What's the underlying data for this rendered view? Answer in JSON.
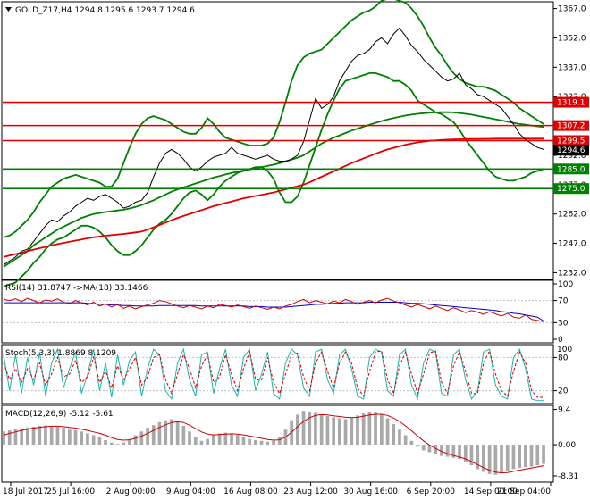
{
  "chart_data": {
    "type": "line",
    "main": {
      "title": "GOLD_Z17,H4  1294.8 1295.6 1293.7 1294.6",
      "ylim": [
        1229,
        1370
      ],
      "y_ticks": [
        1232.0,
        1247.0,
        1262.0,
        1277.0,
        1292.0,
        1307.0,
        1322.0,
        1337.0,
        1352.0,
        1367.0
      ],
      "hlines": [
        {
          "value": 1319.1,
          "label": "1319.1",
          "color": "#e00000"
        },
        {
          "value": 1307.2,
          "label": "1307.2",
          "color": "#e00000"
        },
        {
          "value": 1299.5,
          "label": "1299.5",
          "color": "#e00000"
        },
        {
          "value": 1285.0,
          "label": "1285.0",
          "color": "#008000"
        },
        {
          "value": 1275.0,
          "label": "1275.0",
          "color": "#008000"
        }
      ],
      "current_price": {
        "value": 1294.6,
        "label": "1294.6"
      },
      "price": [
        1236,
        1238,
        1240,
        1243,
        1244,
        1248,
        1252,
        1256,
        1259,
        1258,
        1261,
        1263,
        1266,
        1268,
        1270,
        1269,
        1271,
        1272,
        1270,
        1268,
        1265,
        1266,
        1268,
        1269,
        1273,
        1281,
        1288,
        1293,
        1295,
        1293,
        1290,
        1286,
        1284,
        1286,
        1289,
        1291,
        1292,
        1293,
        1296,
        1293,
        1292,
        1291,
        1290,
        1291,
        1292,
        1290,
        1289,
        1289,
        1290,
        1292,
        1299,
        1310,
        1321,
        1316,
        1318,
        1322,
        1330,
        1335,
        1340,
        1343,
        1344,
        1346,
        1350,
        1352,
        1349,
        1354,
        1357,
        1353,
        1348,
        1345,
        1341,
        1338,
        1335,
        1332,
        1330,
        1331,
        1334,
        1328,
        1326,
        1323,
        1322,
        1320,
        1318,
        1316,
        1312,
        1308,
        1303,
        1300,
        1298,
        1296,
        1295
      ],
      "bb_upper": [
        1250,
        1251,
        1253,
        1256,
        1259,
        1263,
        1268,
        1272,
        1276,
        1278,
        1280,
        1281,
        1282,
        1281,
        1280,
        1279,
        1278,
        1276,
        1276,
        1280,
        1288,
        1296,
        1303,
        1308,
        1311,
        1312,
        1311,
        1310,
        1308,
        1306,
        1304,
        1303,
        1303,
        1306,
        1311,
        1308,
        1304,
        1301,
        1300,
        1299,
        1298,
        1297,
        1297,
        1297,
        1298,
        1301,
        1309,
        1319,
        1330,
        1338,
        1342,
        1344,
        1345,
        1346,
        1349,
        1352,
        1355,
        1358,
        1361,
        1363,
        1365,
        1366,
        1368,
        1371,
        1372,
        1372,
        1371,
        1370,
        1367,
        1363,
        1358,
        1352,
        1347,
        1343,
        1338,
        1334,
        1331,
        1329,
        1328,
        1327,
        1327,
        1326,
        1325,
        1323,
        1321,
        1319,
        1316,
        1314,
        1312,
        1310,
        1308
      ],
      "bb_lower": [
        1225,
        1226,
        1227,
        1230,
        1233,
        1237,
        1240,
        1244,
        1247,
        1249,
        1250,
        1252,
        1254,
        1256,
        1256,
        1255,
        1253,
        1250,
        1246,
        1243,
        1241,
        1241,
        1243,
        1246,
        1250,
        1254,
        1257,
        1259,
        1262,
        1266,
        1270,
        1273,
        1274,
        1272,
        1269,
        1272,
        1276,
        1279,
        1281,
        1283,
        1284,
        1285,
        1286,
        1286,
        1284,
        1280,
        1273,
        1268,
        1268,
        1271,
        1278,
        1287,
        1296,
        1305,
        1313,
        1320,
        1326,
        1330,
        1331,
        1332,
        1333,
        1334,
        1334,
        1333,
        1332,
        1330,
        1330,
        1328,
        1325,
        1320,
        1318,
        1316,
        1314,
        1313,
        1311,
        1309,
        1305,
        1300,
        1296,
        1292,
        1288,
        1284,
        1281,
        1280,
        1279,
        1279,
        1280,
        1281,
        1283,
        1284,
        1285
      ],
      "ma200": [
        1240,
        1240.8,
        1241.5,
        1242.2,
        1243,
        1243.8,
        1244.5,
        1245.2,
        1246,
        1246.6,
        1247.2,
        1247.8,
        1248.4,
        1249,
        1249.6,
        1250.1,
        1250.5,
        1250.9,
        1251.2,
        1251.5,
        1251.8,
        1252.2,
        1252.6,
        1253,
        1254,
        1255.2,
        1256.4,
        1257.6,
        1258.8,
        1260,
        1261,
        1262,
        1263,
        1264,
        1265,
        1266,
        1266.8,
        1267.6,
        1268.4,
        1269.2,
        1270,
        1270.6,
        1271.2,
        1271.8,
        1272.4,
        1273,
        1273.8,
        1274.6,
        1275.4,
        1276.2,
        1277,
        1278.2,
        1279.6,
        1281,
        1282.4,
        1283.8,
        1285.2,
        1286.6,
        1288,
        1289.2,
        1290.4,
        1291.6,
        1292.8,
        1294,
        1295,
        1295.8,
        1296.6,
        1297.4,
        1298,
        1298.6,
        1299,
        1299.4,
        1299.6,
        1299.8,
        1300,
        1300.1,
        1300.2,
        1300.3,
        1300.3,
        1300.3,
        1300.4,
        1300.4,
        1300.5,
        1300.5,
        1300.5,
        1300.5,
        1300.5,
        1300.5,
        1300.5,
        1300.5,
        1300.5
      ],
      "ma100": [
        1235,
        1237,
        1239,
        1241,
        1243,
        1246,
        1248,
        1250,
        1252,
        1254,
        1255.5,
        1257,
        1258.5,
        1260,
        1261,
        1262,
        1262.5,
        1263,
        1263.4,
        1263.8,
        1264.2,
        1264.8,
        1265.6,
        1266.6,
        1267.8,
        1269,
        1270.5,
        1272,
        1273.4,
        1274.6,
        1275.6,
        1276.6,
        1277.6,
        1278.6,
        1279.6,
        1280.6,
        1281.4,
        1282.2,
        1283,
        1283.6,
        1284.2,
        1284.8,
        1285.4,
        1286,
        1286.6,
        1287.2,
        1288,
        1288.8,
        1289.8,
        1290.8,
        1292,
        1294,
        1296,
        1298,
        1299.5,
        1301,
        1302.2,
        1303.4,
        1304.6,
        1305.6,
        1306.6,
        1307.6,
        1308.6,
        1309.5,
        1310.3,
        1311,
        1311.7,
        1312.3,
        1312.8,
        1313.2,
        1313.5,
        1313.8,
        1313.9,
        1314,
        1314,
        1313.9,
        1313.6,
        1313.2,
        1312.8,
        1312.2,
        1311.6,
        1311,
        1310.4,
        1309.8,
        1309.2,
        1308.6,
        1308,
        1307.6,
        1307.2,
        1306.8,
        1306.5
      ]
    },
    "rsi": {
      "title": "RSI(14) 31.8747  ->MA(18) 33.1466",
      "ylim": [
        0,
        100
      ],
      "y_ticks": [
        0,
        30,
        70,
        100
      ],
      "rsi": [
        72,
        70,
        73,
        68,
        74,
        70,
        66,
        71,
        69,
        73,
        67,
        64,
        70,
        66,
        62,
        67,
        60,
        64,
        58,
        63,
        56,
        60,
        55,
        59,
        62,
        65,
        70,
        68,
        64,
        60,
        57,
        61,
        58,
        55,
        60,
        57,
        63,
        61,
        58,
        62,
        59,
        56,
        60,
        57,
        54,
        58,
        55,
        60,
        63,
        68,
        72,
        66,
        70,
        67,
        64,
        69,
        66,
        72,
        68,
        63,
        67,
        70,
        66,
        71,
        74,
        69,
        66,
        62,
        58,
        63,
        59,
        55,
        60,
        56,
        52,
        57,
        53,
        48,
        52,
        49,
        45,
        50,
        46,
        42,
        47,
        40,
        38,
        44,
        36,
        34,
        31.9
      ],
      "ma": [
        66,
        66,
        66,
        66,
        66,
        66,
        66,
        66,
        66,
        66,
        66,
        66,
        66,
        66,
        65,
        64,
        63,
        63,
        62,
        62,
        61,
        61,
        60,
        60,
        60,
        60,
        61,
        61,
        61,
        61,
        61,
        61,
        61,
        60,
        60,
        60,
        60,
        60,
        60,
        60,
        60,
        59,
        59,
        59,
        58,
        58,
        58,
        58,
        59,
        60,
        61,
        62,
        63,
        63,
        64,
        65,
        65,
        66,
        66,
        66,
        66,
        67,
        67,
        67,
        67,
        67,
        67,
        66,
        65,
        65,
        64,
        63,
        62,
        61,
        60,
        59,
        58,
        57,
        56,
        55,
        54,
        53,
        52,
        50,
        49,
        47,
        46,
        44,
        42,
        40,
        33.1
      ]
    },
    "stoch": {
      "title": "Stoch(5,3,3) 1.8869 8.1209",
      "ylim": [
        0,
        100
      ],
      "y_ticks": [
        20,
        80
      ],
      "top_label": "100",
      "main_line": [
        85,
        20,
        85,
        15,
        80,
        30,
        90,
        10,
        70,
        95,
        25,
        60,
        90,
        15,
        50,
        95,
        20,
        70,
        8,
        85,
        30,
        75,
        90,
        10,
        60,
        95,
        85,
        20,
        5,
        70,
        95,
        40,
        10,
        85,
        90,
        15,
        60,
        95,
        30,
        10,
        80,
        95,
        20,
        50,
        90,
        15,
        5,
        70,
        95,
        85,
        25,
        10,
        90,
        95,
        40,
        15,
        85,
        95,
        60,
        10,
        5,
        80,
        95,
        90,
        20,
        10,
        85,
        95,
        30,
        5,
        70,
        95,
        90,
        15,
        10,
        85,
        95,
        40,
        5,
        20,
        90,
        95,
        30,
        10,
        5,
        80,
        95,
        60,
        5,
        2,
        1.9
      ],
      "signal": [
        70,
        40,
        60,
        35,
        60,
        40,
        70,
        30,
        50,
        80,
        45,
        50,
        75,
        35,
        45,
        80,
        35,
        55,
        25,
        65,
        40,
        60,
        80,
        30,
        45,
        80,
        85,
        40,
        15,
        50,
        85,
        60,
        25,
        65,
        85,
        35,
        45,
        85,
        50,
        20,
        60,
        90,
        40,
        40,
        80,
        35,
        15,
        50,
        85,
        88,
        45,
        20,
        70,
        90,
        55,
        25,
        70,
        90,
        70,
        25,
        10,
        55,
        90,
        92,
        40,
        15,
        65,
        90,
        50,
        15,
        50,
        88,
        92,
        35,
        15,
        65,
        90,
        55,
        15,
        15,
        70,
        92,
        50,
        20,
        10,
        55,
        90,
        70,
        20,
        8,
        8.1
      ]
    },
    "macd": {
      "title": "MACD(12,26,9) -5.12 -5.61",
      "ylim": [
        -9.5,
        10
      ],
      "y_ticks": [
        9.4,
        0.0,
        -8.31
      ],
      "y_tick_labels": [
        "9.4",
        "0.00",
        "-8.31"
      ],
      "hist": [
        3.5,
        3.8,
        4.1,
        4.3,
        4.6,
        4.8,
        5.0,
        5.1,
        5.0,
        4.8,
        4.5,
        4.0,
        3.8,
        3.5,
        3.0,
        2.5,
        2.0,
        1.2,
        0.5,
        0.2,
        0.6,
        1.5,
        2.5,
        3.5,
        4.5,
        5.2,
        6.0,
        6.5,
        6.8,
        6.2,
        5.0,
        3.5,
        2.0,
        1.0,
        1.5,
        2.5,
        3.0,
        3.2,
        3.0,
        2.6,
        2.0,
        1.5,
        1.2,
        1.0,
        0.8,
        1.0,
        2.0,
        4.0,
        6.5,
        8.0,
        9.0,
        8.8,
        8.5,
        8.0,
        7.6,
        7.3,
        7.0,
        6.8,
        7.2,
        7.8,
        8.3,
        8.6,
        8.5,
        8.0,
        7.0,
        5.5,
        4.0,
        2.5,
        1.0,
        -0.5,
        -1.5,
        -2.0,
        -2.5,
        -3.0,
        -3.2,
        -3.5,
        -3.8,
        -4.5,
        -5.5,
        -6.5,
        -7.2,
        -7.8,
        -8.0,
        -7.5,
        -7.0,
        -6.5,
        -6.2,
        -6.0,
        -5.8,
        -5.5,
        -5.1
      ],
      "signal": [
        2.5,
        3.0,
        3.4,
        3.8,
        4.1,
        4.4,
        4.6,
        4.8,
        4.9,
        4.9,
        4.8,
        4.6,
        4.4,
        4.1,
        3.8,
        3.4,
        3.0,
        2.5,
        1.9,
        1.4,
        1.2,
        1.3,
        1.7,
        2.3,
        3.0,
        3.8,
        4.6,
        5.3,
        5.9,
        6.1,
        5.9,
        5.2,
        4.3,
        3.4,
        2.8,
        2.6,
        2.7,
        2.8,
        2.9,
        2.8,
        2.6,
        2.3,
        2.0,
        1.7,
        1.4,
        1.2,
        1.3,
        2.0,
        3.3,
        4.8,
        6.2,
        7.2,
        7.8,
        8.0,
        7.9,
        7.7,
        7.5,
        7.3,
        7.2,
        7.3,
        7.6,
        7.9,
        8.1,
        8.1,
        7.8,
        7.1,
        6.2,
        5.0,
        3.7,
        2.3,
        1.0,
        -0.1,
        -1.0,
        -1.8,
        -2.4,
        -2.9,
        -3.3,
        -3.8,
        -4.5,
        -5.3,
        -6.1,
        -6.8,
        -7.3,
        -7.5,
        -7.4,
        -7.1,
        -6.8,
        -6.5,
        -6.2,
        -5.9,
        -5.6
      ]
    },
    "x_tick_labels": [
      "18 Jul 2017",
      "25 Jul 16:00",
      "2 Aug 00:00",
      "9 Aug 04:00",
      "16 Aug 08:00",
      "23 Aug 12:00",
      "30 Aug 16:00",
      "6 Sep 20:00",
      "14 Sep 00:00",
      "21 Sep 04:00"
    ],
    "colors": {
      "price": "#000000",
      "bollinger": "#008000",
      "ma200": "#e00000",
      "ma100": "#008000",
      "rsi": "#cc0000",
      "rsi_ma": "#0000cc",
      "stoch_main": "#20b2aa",
      "stoch_signal": "#cc0000",
      "macd_hist": "#a9a9a9",
      "macd_signal": "#cc0000"
    }
  }
}
